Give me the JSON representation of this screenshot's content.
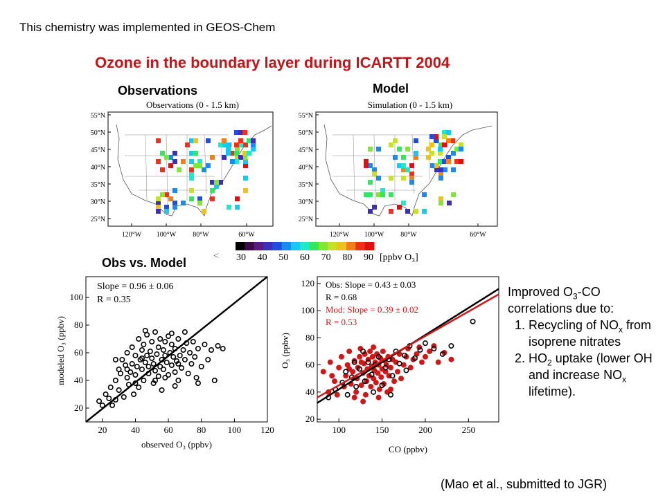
{
  "header": {
    "top_note": "This chemistry was implemented in GEOS-Chem",
    "title": "Ozone in the boundary layer during ICARTT 2004",
    "title_color": "#c0161a"
  },
  "panels": {
    "observations_label": "Observations",
    "model_label": "Model",
    "obs_vs_model_label": "Obs vs. Model"
  },
  "citation": "(Mao et al., submitted to JGR)",
  "side_text": {
    "intro_pre": "Improved O",
    "intro_sub": "3",
    "intro_post": "-CO correlations due to:",
    "item1_pre": "Recycling of NO",
    "item1_sub": "x",
    "item1_post": " from isoprene nitrates",
    "item2_pre": "HO",
    "item2_sub": "2",
    "item2_mid": " uptake (lower OH and increase NO",
    "item2_sub2": "x",
    "item2_post": " lifetime)."
  },
  "maps": {
    "obs_title": "Observations (0 - 1.5 km)",
    "model_title": "Simulation (0 - 1.5 km)",
    "lat_ticks": [
      "55°N",
      "50°N",
      "45°N",
      "40°N",
      "35°N",
      "30°N",
      "25°N"
    ],
    "lon_ticks": [
      "120°W",
      "100°W",
      "80°W",
      "60°W"
    ],
    "colorbar": {
      "ticks": [
        "30",
        "40",
        "50",
        "60",
        "70",
        "80",
        "90"
      ],
      "unit": "[ppbv O₃]",
      "lt_marker": "<",
      "colors": [
        "#000000",
        "#3a0a4a",
        "#5c1a80",
        "#3d2fb8",
        "#1f4fe0",
        "#1a8cf0",
        "#19c8f0",
        "#20e8c8",
        "#30e860",
        "#80e830",
        "#c8e028",
        "#f0c020",
        "#f08018",
        "#f03018",
        "#e01010"
      ]
    }
  },
  "chart_data": [
    {
      "type": "scatter",
      "xlabel": "observed O₃ (ppbv)",
      "ylabel": "modeled O₃ (ppbv)",
      "xlim": [
        10,
        120
      ],
      "ylim": [
        10,
        115
      ],
      "xticks": [
        20,
        40,
        60,
        80,
        100,
        120
      ],
      "yticks": [
        20,
        40,
        60,
        80,
        100
      ],
      "annotations": [
        "Slope = 0.96 ± 0.06",
        "R = 0.35"
      ],
      "fit_line": {
        "x": [
          10,
          120
        ],
        "y": [
          10,
          115
        ],
        "color": "#000000"
      },
      "series": [
        {
          "color": "#000000",
          "points": [
            [
              18,
              25
            ],
            [
              20,
              22
            ],
            [
              22,
              30
            ],
            [
              24,
              27
            ],
            [
              25,
              35
            ],
            [
              26,
              22
            ],
            [
              28,
              40
            ],
            [
              28,
              26
            ],
            [
              30,
              48
            ],
            [
              30,
              33
            ],
            [
              31,
              45
            ],
            [
              32,
              55
            ],
            [
              33,
              28
            ],
            [
              34,
              51
            ],
            [
              35,
              42
            ],
            [
              35,
              60
            ],
            [
              36,
              37
            ],
            [
              37,
              46
            ],
            [
              38,
              64
            ],
            [
              38,
              52
            ],
            [
              39,
              30
            ],
            [
              40,
              58
            ],
            [
              40,
              44
            ],
            [
              41,
              50
            ],
            [
              42,
              70
            ],
            [
              42,
              35
            ],
            [
              43,
              55
            ],
            [
              44,
              62
            ],
            [
              44,
              48
            ],
            [
              45,
              40
            ],
            [
              45,
              66
            ],
            [
              46,
              53
            ],
            [
              47,
              58
            ],
            [
              47,
              73
            ],
            [
              48,
              45
            ],
            [
              48,
              50
            ],
            [
              49,
              61
            ],
            [
              50,
              56
            ],
            [
              50,
              68
            ],
            [
              51,
              38
            ],
            [
              51,
              52
            ],
            [
              52,
              47
            ],
            [
              52,
              75
            ],
            [
              53,
              59
            ],
            [
              54,
              64
            ],
            [
              54,
              43
            ],
            [
              55,
              50
            ],
            [
              55,
              70
            ],
            [
              56,
              55
            ],
            [
              56,
              33
            ],
            [
              57,
              62
            ],
            [
              57,
              48
            ],
            [
              58,
              68
            ],
            [
              58,
              58
            ],
            [
              59,
              53
            ],
            [
              60,
              44
            ],
            [
              60,
              72
            ],
            [
              61,
              60
            ],
            [
              62,
              51
            ],
            [
              62,
              66
            ],
            [
              63,
              57
            ],
            [
              64,
              46
            ],
            [
              64,
              63
            ],
            [
              65,
              54
            ],
            [
              66,
              70
            ],
            [
              66,
              40
            ],
            [
              67,
              58
            ],
            [
              68,
              49
            ],
            [
              69,
              62
            ],
            [
              70,
              55
            ],
            [
              71,
              67
            ],
            [
              72,
              45
            ],
            [
              73,
              60
            ],
            [
              74,
              52
            ],
            [
              75,
              68
            ],
            [
              76,
              57
            ],
            [
              77,
              42
            ],
            [
              78,
              63
            ],
            [
              80,
              50
            ],
            [
              82,
              66
            ],
            [
              84,
              55
            ],
            [
              86,
              62
            ],
            [
              88,
              40
            ],
            [
              90,
              65
            ],
            [
              93,
              63
            ],
            [
              46,
              76
            ],
            [
              62,
              74
            ],
            [
              70,
              75
            ],
            [
              35,
              48
            ],
            [
              40,
              38
            ],
            [
              58,
              42
            ],
            [
              64,
              36
            ],
            [
              78,
              38
            ],
            [
              28,
              55
            ],
            [
              52,
              40
            ],
            [
              44,
              56
            ],
            [
              66,
              52
            ]
          ]
        }
      ]
    },
    {
      "type": "scatter",
      "xlabel": "CO (ppbv)",
      "ylabel": "O₃ (ppbv)",
      "xlim": [
        75,
        285
      ],
      "ylim": [
        18,
        125
      ],
      "xticks": [
        100,
        150,
        200,
        250
      ],
      "yticks": [
        20,
        40,
        60,
        80,
        100,
        120
      ],
      "annotations": [
        "Obs: Slope = 0.43 ± 0.03",
        "R = 0.68",
        "Mod: Slope = 0.39 ± 0.02",
        "R = 0.53"
      ],
      "annotation_colors": [
        "#000000",
        "#000000",
        "#d01818",
        "#d01818"
      ],
      "fit_lines": [
        {
          "name": "Obs",
          "x": [
            75,
            285
          ],
          "y": [
            32,
            116
          ],
          "color": "#000000"
        },
        {
          "name": "Mod",
          "x": [
            75,
            285
          ],
          "y": [
            36,
            112
          ],
          "color": "#d01818"
        }
      ],
      "series": [
        {
          "name": "Mod",
          "color": "#d01818",
          "points": [
            [
              82,
              55
            ],
            [
              90,
              62
            ],
            [
              95,
              48
            ],
            [
              100,
              58
            ],
            [
              103,
              66
            ],
            [
              106,
              44
            ],
            [
              108,
              52
            ],
            [
              110,
              60
            ],
            [
              112,
              70
            ],
            [
              114,
              46
            ],
            [
              116,
              55
            ],
            [
              118,
              63
            ],
            [
              120,
              40
            ],
            [
              121,
              50
            ],
            [
              122,
              58
            ],
            [
              124,
              66
            ],
            [
              125,
              72
            ],
            [
              126,
              45
            ],
            [
              128,
              54
            ],
            [
              129,
              61
            ],
            [
              130,
              68
            ],
            [
              131,
              38
            ],
            [
              132,
              48
            ],
            [
              133,
              57
            ],
            [
              134,
              64
            ],
            [
              135,
              52
            ],
            [
              136,
              70
            ],
            [
              137,
              44
            ],
            [
              138,
              59
            ],
            [
              139,
              66
            ],
            [
              140,
              50
            ],
            [
              141,
              56
            ],
            [
              142,
              62
            ],
            [
              143,
              47
            ],
            [
              144,
              68
            ],
            [
              145,
              54
            ],
            [
              146,
              60
            ],
            [
              147,
              42
            ],
            [
              148,
              65
            ],
            [
              149,
              51
            ],
            [
              150,
              57
            ],
            [
              151,
              70
            ],
            [
              152,
              46
            ],
            [
              153,
              63
            ],
            [
              154,
              55
            ],
            [
              155,
              60
            ],
            [
              156,
              40
            ],
            [
              157,
              66
            ],
            [
              158,
              52
            ],
            [
              160,
              58
            ],
            [
              162,
              64
            ],
            [
              164,
              48
            ],
            [
              166,
              62
            ],
            [
              168,
              55
            ],
            [
              170,
              68
            ],
            [
              172,
              50
            ],
            [
              175,
              60
            ],
            [
              178,
              66
            ],
            [
              180,
              72
            ],
            [
              183,
              58
            ],
            [
              186,
              64
            ],
            [
              190,
              68
            ],
            [
              193,
              73
            ],
            [
              196,
              62
            ],
            [
              200,
              66
            ],
            [
              205,
              70
            ],
            [
              210,
              74
            ],
            [
              215,
              62
            ],
            [
              222,
              69
            ],
            [
              230,
              64
            ],
            [
              88,
              40
            ],
            [
              98,
              38
            ],
            [
              118,
              36
            ],
            [
              128,
              33
            ],
            [
              160,
              42
            ],
            [
              92,
              52
            ],
            [
              140,
              73
            ],
            [
              126,
              62
            ],
            [
              146,
              36
            ],
            [
              112,
              57
            ]
          ]
        },
        {
          "name": "Obs",
          "color": "#000000",
          "points": [
            [
              88,
              36
            ],
            [
              96,
              42
            ],
            [
              104,
              47
            ],
            [
              110,
              38
            ],
            [
              115,
              51
            ],
            [
              120,
              44
            ],
            [
              124,
              57
            ],
            [
              130,
              48
            ],
            [
              134,
              62
            ],
            [
              138,
              53
            ],
            [
              142,
              60
            ],
            [
              146,
              66
            ],
            [
              150,
              45
            ],
            [
              154,
              58
            ],
            [
              158,
              64
            ],
            [
              162,
              52
            ],
            [
              166,
              70
            ],
            [
              170,
              61
            ],
            [
              176,
              67
            ],
            [
              182,
              74
            ],
            [
              188,
              65
            ],
            [
              194,
              71
            ],
            [
              200,
              76
            ],
            [
              210,
              72
            ],
            [
              220,
              68
            ],
            [
              230,
              74
            ],
            [
              255,
              92
            ],
            [
              140,
              40
            ],
            [
              160,
              38
            ],
            [
              178,
              56
            ],
            [
              128,
              70
            ],
            [
              118,
              62
            ],
            [
              108,
              55
            ]
          ]
        }
      ]
    }
  ]
}
